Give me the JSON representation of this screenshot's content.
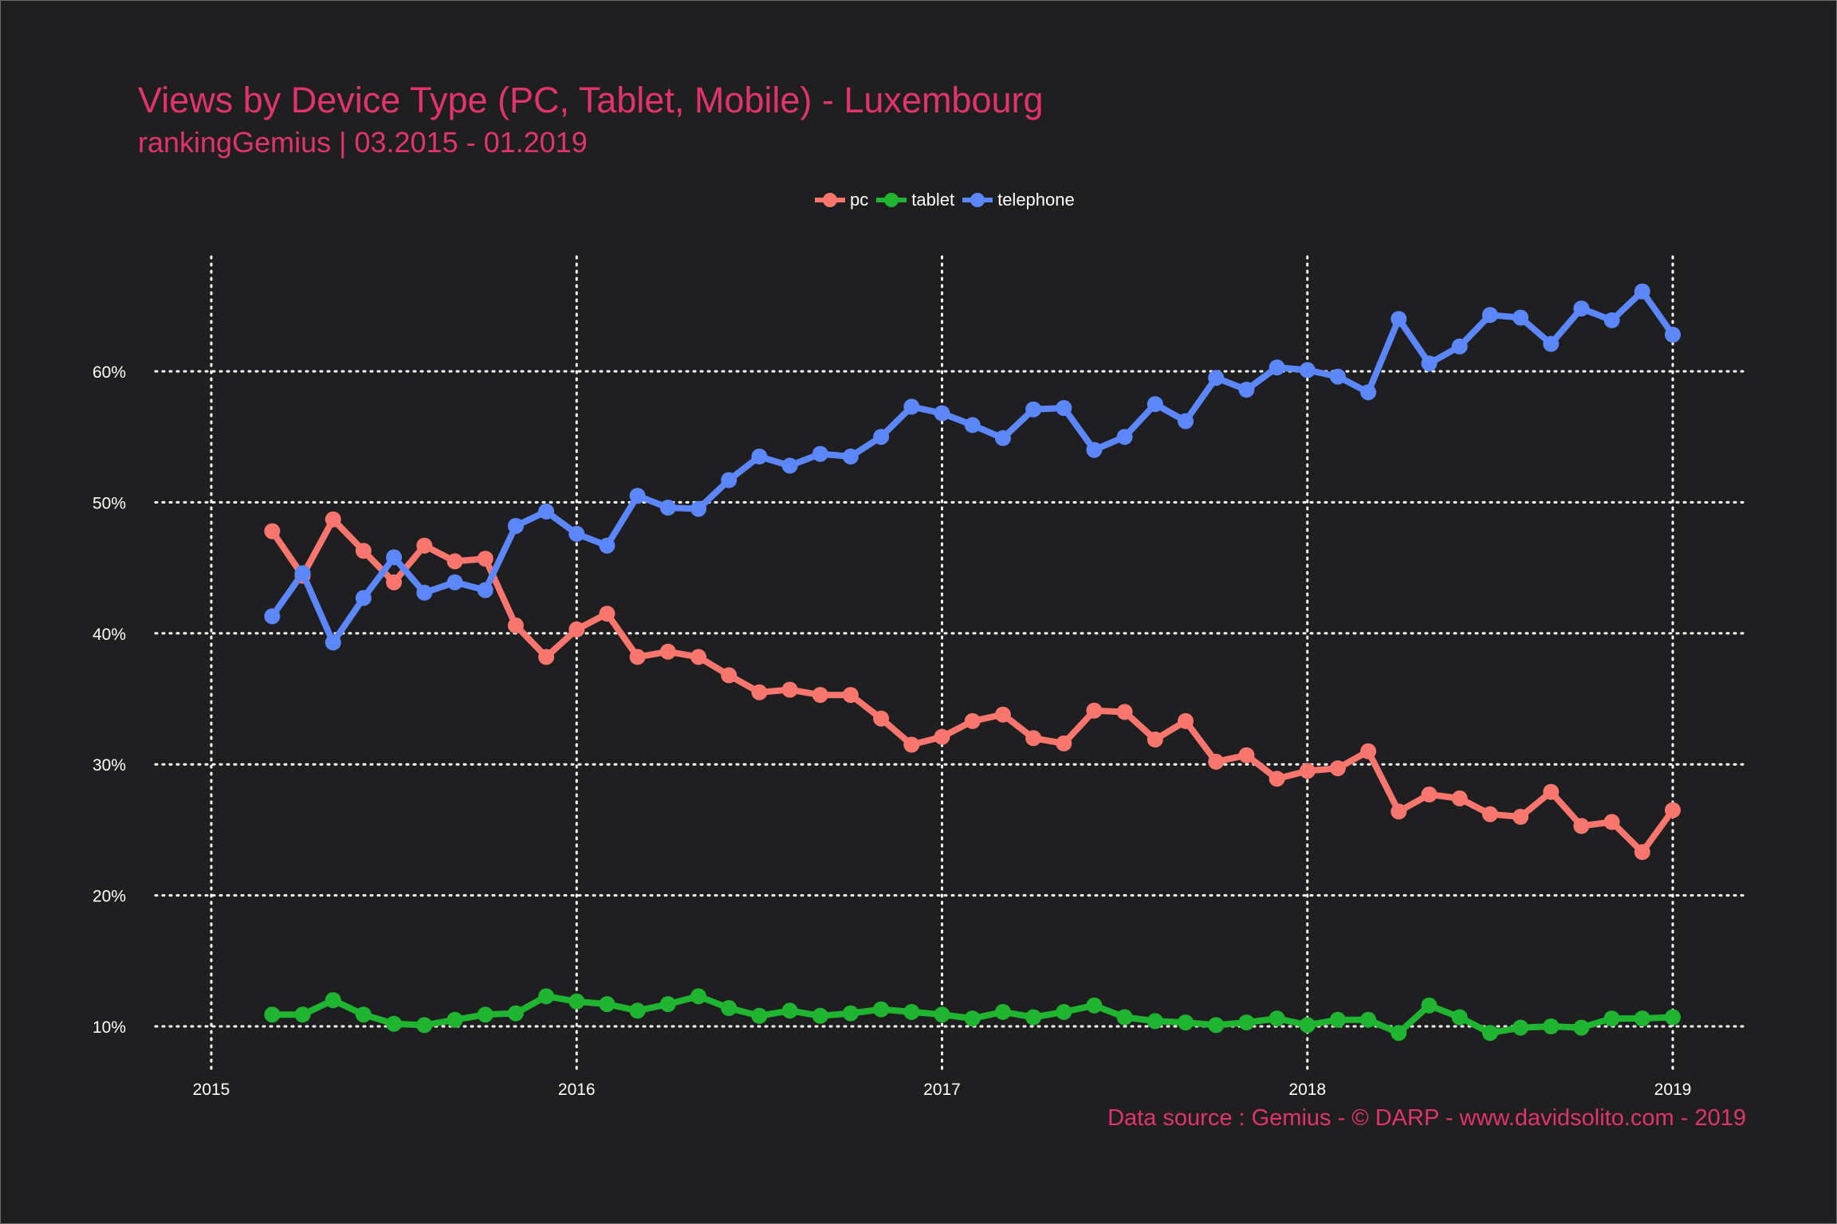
{
  "chart_data": {
    "type": "line",
    "title": "Views by Device Type (PC, Tablet, Mobile) - Luxembourg",
    "subtitle": "rankingGemius | 03.2015 - 01.2019",
    "caption": "Data source : Gemius - © DARP - www.davidsolito.com - 2019",
    "xlabel": "",
    "ylabel": "",
    "x_start": "2015-03",
    "x_end": "2019-01",
    "x_ticks": [
      "2015",
      "2016",
      "2017",
      "2018",
      "2019"
    ],
    "y_ticks": [
      "10%",
      "20%",
      "30%",
      "40%",
      "50%",
      "60%"
    ],
    "ylim": [
      5,
      70
    ],
    "grid": true,
    "legend_position": "top",
    "series": [
      {
        "name": "pc",
        "color": "#f8766d",
        "values": [
          47.8,
          44.4,
          48.7,
          46.3,
          43.9,
          46.7,
          45.5,
          45.7,
          40.6,
          38.2,
          40.3,
          41.5,
          38.2,
          38.6,
          38.2,
          36.8,
          35.5,
          35.7,
          35.3,
          35.3,
          33.5,
          31.5,
          32.1,
          33.3,
          33.8,
          32.0,
          31.6,
          34.1,
          34.0,
          31.9,
          33.3,
          30.2,
          30.7,
          28.9,
          29.5,
          29.7,
          31.0,
          26.4,
          27.7,
          27.4,
          26.2,
          26.0,
          27.9,
          25.3,
          25.6,
          23.3,
          26.5
        ]
      },
      {
        "name": "tablet",
        "color": "#1fb531",
        "values": [
          10.9,
          10.9,
          12.0,
          10.9,
          10.2,
          10.1,
          10.5,
          10.9,
          11.0,
          12.3,
          11.9,
          11.7,
          11.2,
          11.7,
          12.3,
          11.4,
          10.8,
          11.2,
          10.8,
          11.0,
          11.3,
          11.1,
          10.9,
          10.6,
          11.1,
          10.7,
          11.1,
          11.6,
          10.7,
          10.4,
          10.3,
          10.1,
          10.3,
          10.6,
          10.1,
          10.5,
          10.5,
          9.5,
          11.6,
          10.7,
          9.5,
          9.9,
          10.0,
          9.9,
          10.6,
          10.6,
          10.7
        ]
      },
      {
        "name": "telephone",
        "color": "#5c87fb",
        "values": [
          41.3,
          44.6,
          39.3,
          42.7,
          45.8,
          43.1,
          43.9,
          43.3,
          48.2,
          49.3,
          47.6,
          46.7,
          50.5,
          49.6,
          49.5,
          51.7,
          53.5,
          52.8,
          53.7,
          53.5,
          55.0,
          57.3,
          56.8,
          55.9,
          54.9,
          57.1,
          57.2,
          54.0,
          55.0,
          57.5,
          56.2,
          59.5,
          58.6,
          60.3,
          60.1,
          59.6,
          58.4,
          64.0,
          60.6,
          61.9,
          64.3,
          64.1,
          62.1,
          64.8,
          63.9,
          66.1,
          62.8
        ]
      }
    ]
  }
}
